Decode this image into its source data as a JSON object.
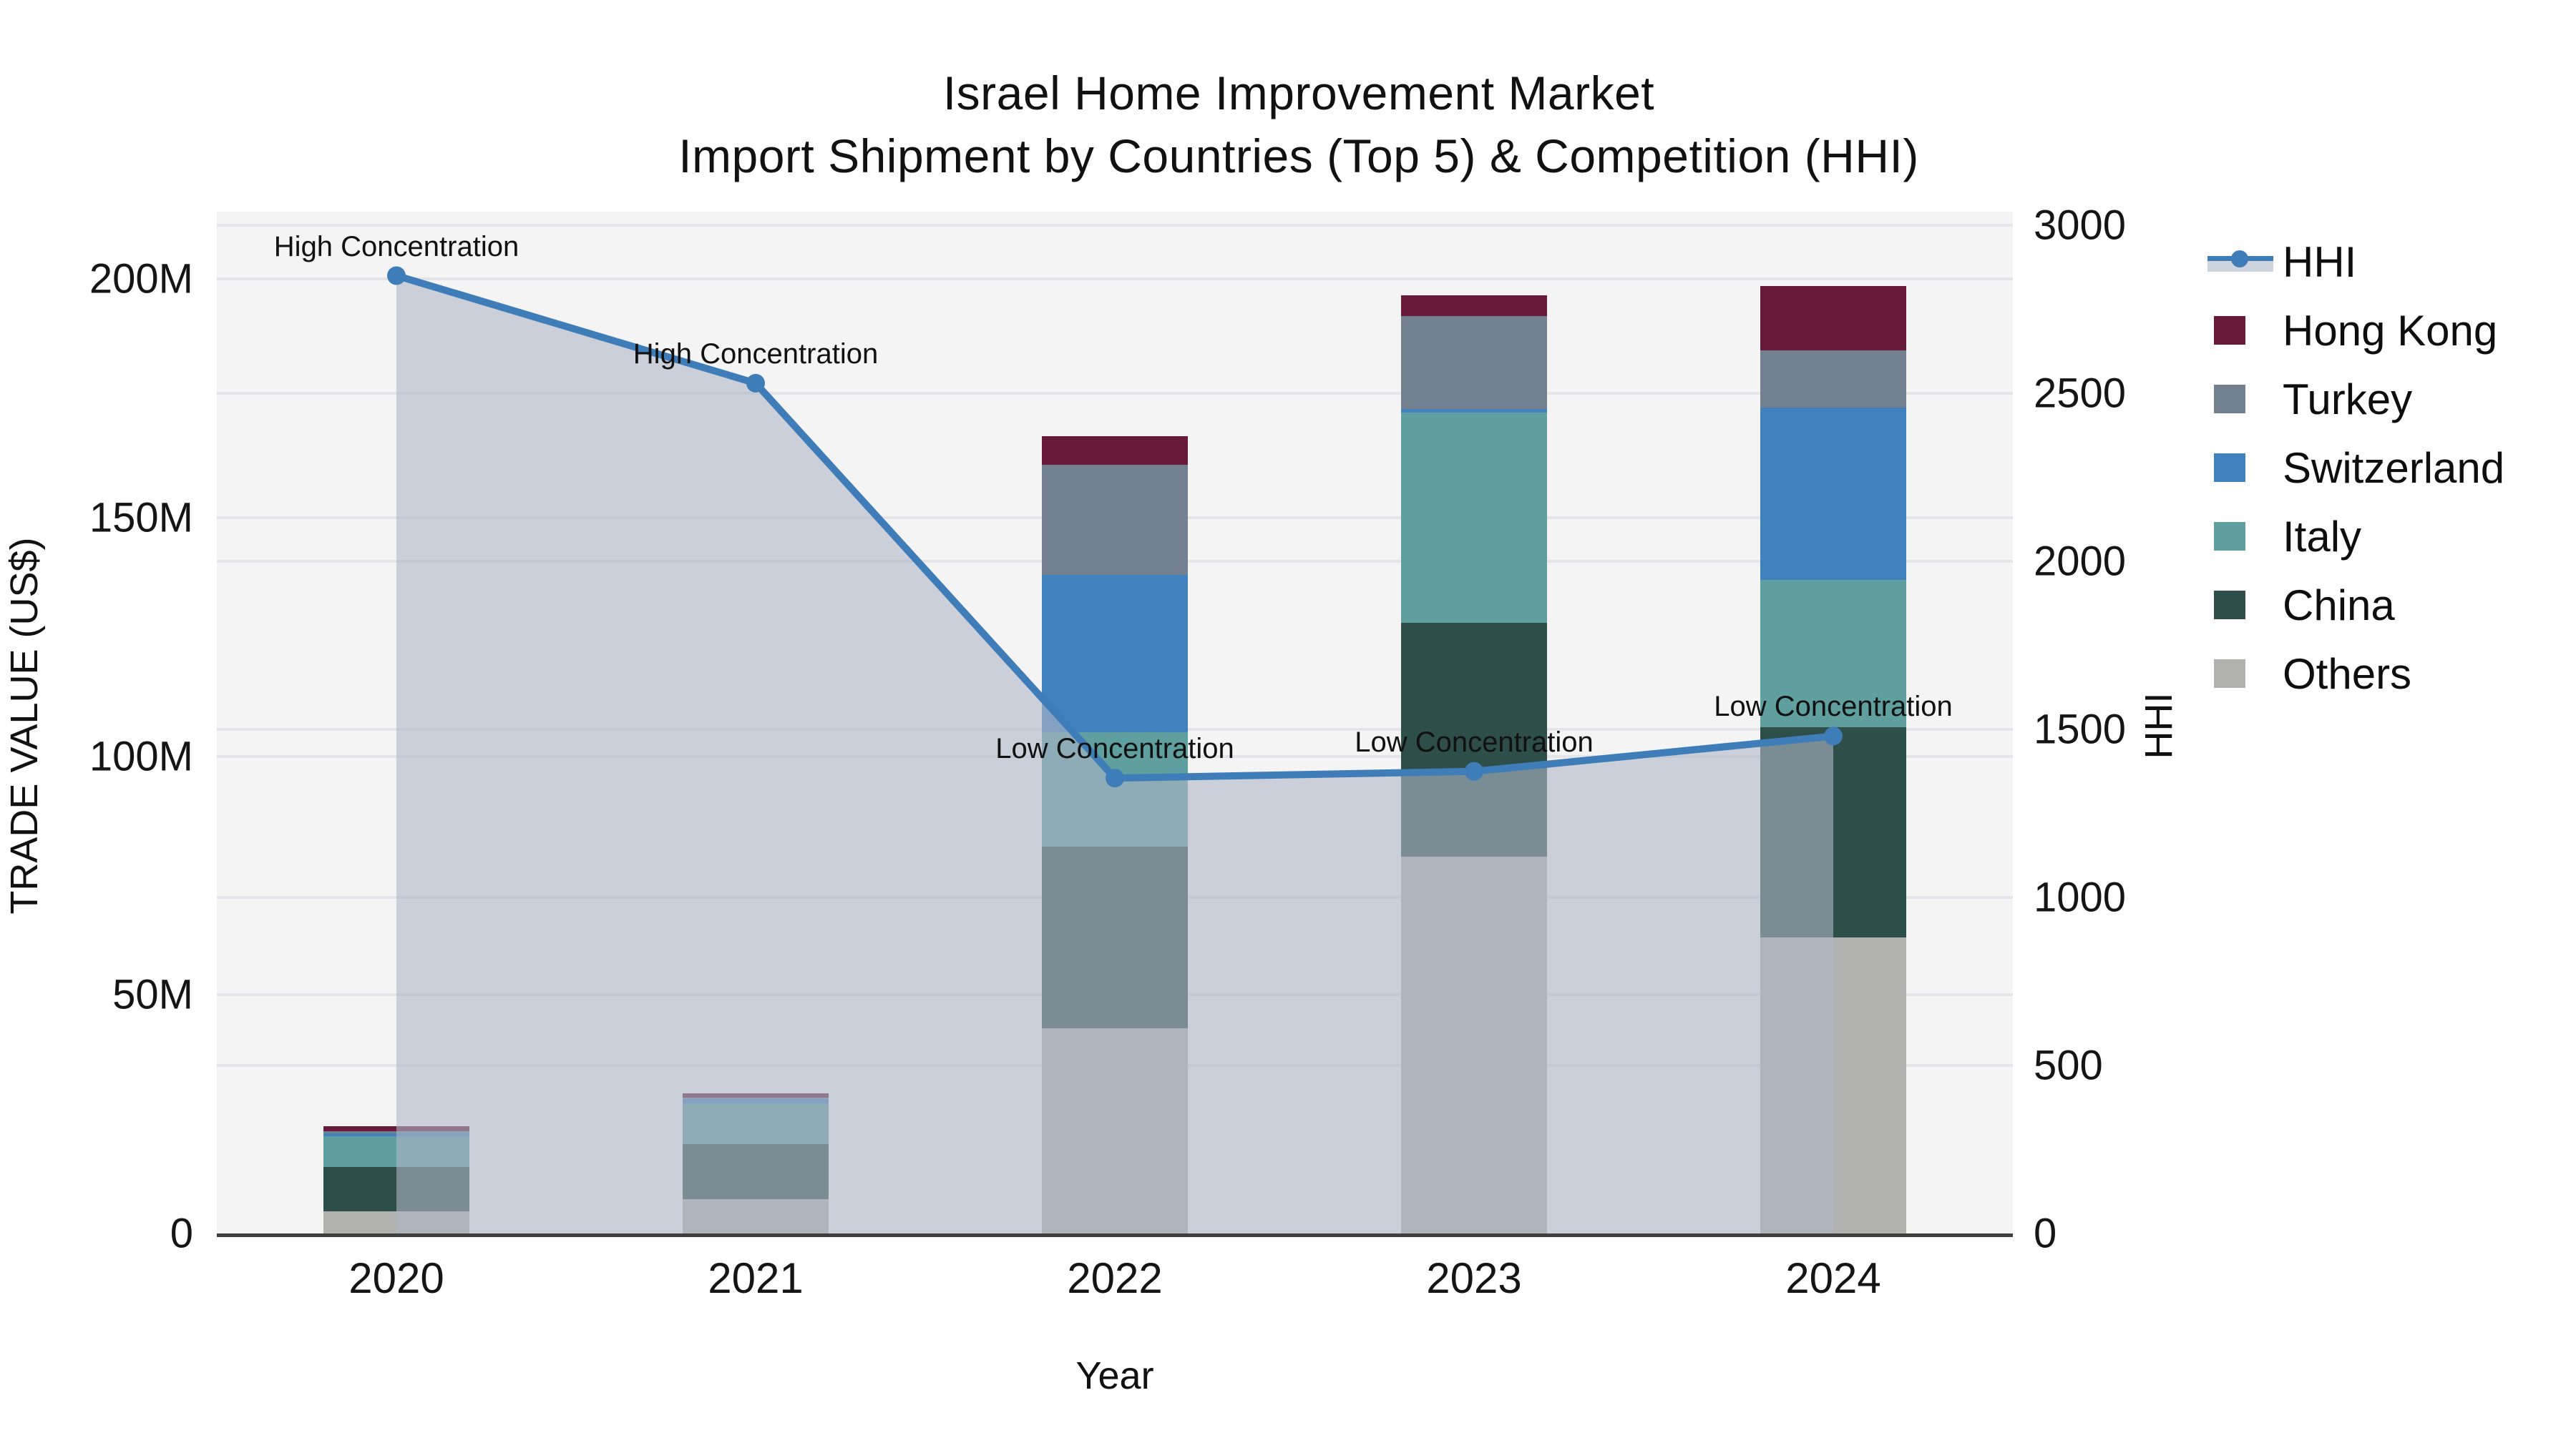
{
  "chart_data": {
    "type": "combo-stacked-bar-line",
    "title": "Israel Home Improvement Market",
    "subtitle": "Import Shipment by Countries (Top 5) & Competition (HHI)",
    "xlabel": "Year",
    "ylabel_left": "TRADE VALUE (US$)",
    "ylabel_right": "HHI",
    "categories": [
      "2020",
      "2021",
      "2022",
      "2023",
      "2024"
    ],
    "value_unit": "M US$",
    "stack_order_bottom_to_top": [
      "Others",
      "China",
      "Italy",
      "Switzerland",
      "Turkey",
      "Hong Kong"
    ],
    "series": [
      {
        "name": "Hong Kong",
        "color": "#681a3b",
        "values": [
          1.0,
          0.9,
          6.0,
          4.3,
          13.5
        ]
      },
      {
        "name": "Turkey",
        "color": "#72808f",
        "values": [
          0.5,
          0.4,
          23.0,
          19.5,
          12.0
        ]
      },
      {
        "name": "Switzerland",
        "color": "#4182be",
        "values": [
          0.5,
          0.8,
          33.0,
          0.7,
          36.0
        ]
      },
      {
        "name": "Italy",
        "color": "#5f9fa0",
        "values": [
          6.4,
          8.6,
          24.0,
          44.0,
          31.0
        ]
      },
      {
        "name": "China",
        "color": "#2e4e4a",
        "values": [
          9.3,
          11.5,
          38.0,
          49.0,
          44.0
        ]
      },
      {
        "name": "Others",
        "color": "#b1b1b0",
        "values": [
          4.7,
          7.2,
          43.0,
          79.0,
          62.0
        ]
      }
    ],
    "hhi": {
      "name": "HHI",
      "line_color": "#3f7db8",
      "fill_color": "rgba(173,182,198,0.6)",
      "values": [
        2850,
        2530,
        1355,
        1375,
        1480
      ],
      "annotations": [
        "High Concentration",
        "High Concentration",
        "Low Concentration",
        "Low Concentration",
        "Low Concentration"
      ]
    },
    "axes": {
      "left": {
        "title": "TRADE VALUE (US$)",
        "ticks": [
          {
            "label": "0",
            "value": 0
          },
          {
            "label": "50M",
            "value": 50
          },
          {
            "label": "100M",
            "value": 100
          },
          {
            "label": "150M",
            "value": 150
          },
          {
            "label": "200M",
            "value": 200
          }
        ],
        "max": 200
      },
      "right": {
        "title": "HHI",
        "ticks": [
          {
            "label": "0",
            "value": 0
          },
          {
            "label": "500",
            "value": 500
          },
          {
            "label": "1000",
            "value": 1000
          },
          {
            "label": "1500",
            "value": 1500
          },
          {
            "label": "2000",
            "value": 2000
          },
          {
            "label": "2500",
            "value": 2500
          },
          {
            "label": "3000",
            "value": 3000
          }
        ],
        "max": 3000
      }
    },
    "legend_order": [
      "HHI",
      "Hong Kong",
      "Turkey",
      "Switzerland",
      "Italy",
      "China",
      "Others"
    ],
    "grid": true,
    "legend_position": "right"
  }
}
